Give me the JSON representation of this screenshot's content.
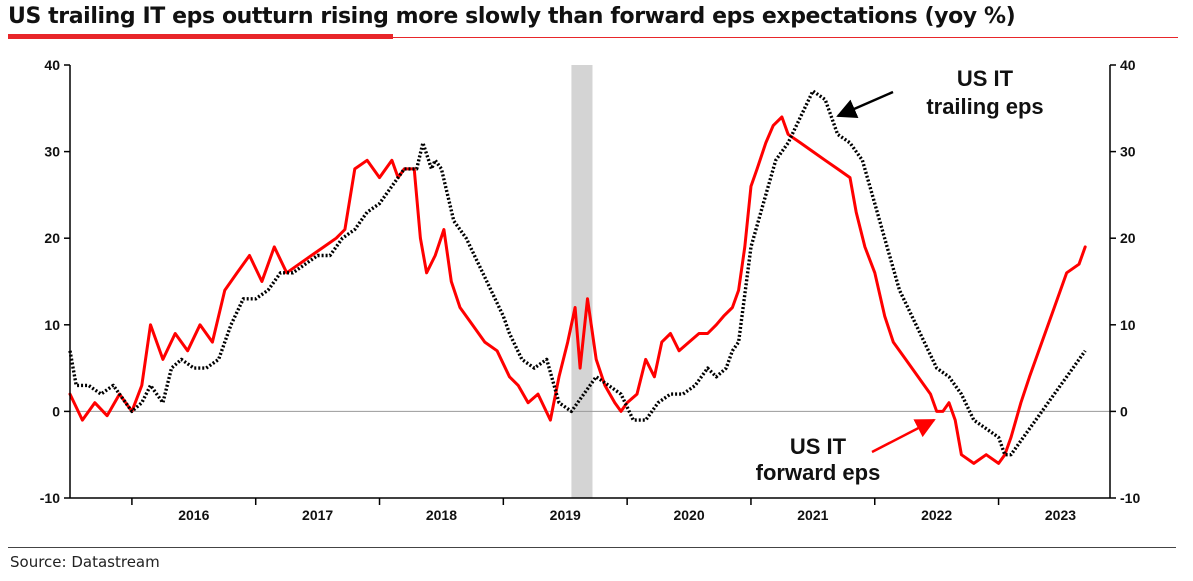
{
  "title": "US trailing IT eps outturn rising more slowly than forward eps expectations (yoy %)",
  "source": "Source: Datastream",
  "chart_data": {
    "type": "line",
    "x_axis": {
      "labels": [
        "2016",
        "2017",
        "2018",
        "2019",
        "2020",
        "2021",
        "2022",
        "2023"
      ],
      "range": [
        2015.5,
        2023.9
      ]
    },
    "y_axis_left": {
      "ticks": [
        "-10",
        "0",
        "10",
        "20",
        "30",
        "40"
      ],
      "range": [
        -10,
        40
      ]
    },
    "y_axis_right": {
      "ticks": [
        "-10",
        "0",
        "10",
        "20",
        "30",
        "40"
      ],
      "range": [
        -10,
        40
      ]
    },
    "shaded_region": [
      2019.55,
      2019.72
    ],
    "zero_line": true,
    "annotations": [
      {
        "text_lines": [
          "US IT",
          "trailing eps"
        ],
        "points_to": "trailing"
      },
      {
        "text_lines": [
          "US IT",
          "forward eps"
        ],
        "points_to": "forward"
      }
    ],
    "series": [
      {
        "key": "forward",
        "color": "#ff0000",
        "style": "solid",
        "points": [
          [
            2015.5,
            2
          ],
          [
            2015.6,
            -1
          ],
          [
            2015.7,
            1
          ],
          [
            2015.8,
            -0.5
          ],
          [
            2015.9,
            2
          ],
          [
            2016.0,
            0
          ],
          [
            2016.08,
            3
          ],
          [
            2016.15,
            10
          ],
          [
            2016.25,
            6
          ],
          [
            2016.35,
            9
          ],
          [
            2016.45,
            7
          ],
          [
            2016.55,
            10
          ],
          [
            2016.65,
            8
          ],
          [
            2016.75,
            14
          ],
          [
            2016.85,
            16
          ],
          [
            2016.95,
            18
          ],
          [
            2017.05,
            15
          ],
          [
            2017.15,
            19
          ],
          [
            2017.25,
            16
          ],
          [
            2017.35,
            17
          ],
          [
            2017.45,
            18
          ],
          [
            2017.55,
            19
          ],
          [
            2017.65,
            20
          ],
          [
            2017.72,
            21
          ],
          [
            2017.8,
            28
          ],
          [
            2017.9,
            29
          ],
          [
            2018.0,
            27
          ],
          [
            2018.1,
            29
          ],
          [
            2018.15,
            27
          ],
          [
            2018.2,
            28
          ],
          [
            2018.28,
            28
          ],
          [
            2018.33,
            20
          ],
          [
            2018.38,
            16
          ],
          [
            2018.45,
            18
          ],
          [
            2018.52,
            21
          ],
          [
            2018.58,
            15
          ],
          [
            2018.65,
            12
          ],
          [
            2018.75,
            10
          ],
          [
            2018.85,
            8
          ],
          [
            2018.95,
            7
          ],
          [
            2019.05,
            4
          ],
          [
            2019.12,
            3
          ],
          [
            2019.2,
            1
          ],
          [
            2019.28,
            2
          ],
          [
            2019.38,
            -1
          ],
          [
            2019.45,
            4
          ],
          [
            2019.52,
            8
          ],
          [
            2019.58,
            12
          ],
          [
            2019.62,
            5
          ],
          [
            2019.68,
            13
          ],
          [
            2019.75,
            6
          ],
          [
            2019.82,
            3
          ],
          [
            2019.9,
            1
          ],
          [
            2019.95,
            0
          ],
          [
            2020.0,
            1
          ],
          [
            2020.08,
            2
          ],
          [
            2020.15,
            6
          ],
          [
            2020.22,
            4
          ],
          [
            2020.28,
            8
          ],
          [
            2020.35,
            9
          ],
          [
            2020.42,
            7
          ],
          [
            2020.5,
            8
          ],
          [
            2020.58,
            9
          ],
          [
            2020.65,
            9
          ],
          [
            2020.72,
            10
          ],
          [
            2020.78,
            11
          ],
          [
            2020.85,
            12
          ],
          [
            2020.9,
            14
          ],
          [
            2020.95,
            19
          ],
          [
            2021.0,
            26
          ],
          [
            2021.05,
            28
          ],
          [
            2021.12,
            31
          ],
          [
            2021.18,
            33
          ],
          [
            2021.25,
            34
          ],
          [
            2021.3,
            32
          ],
          [
            2021.4,
            31
          ],
          [
            2021.5,
            30
          ],
          [
            2021.6,
            29
          ],
          [
            2021.7,
            28
          ],
          [
            2021.8,
            27
          ],
          [
            2021.85,
            23
          ],
          [
            2021.92,
            19
          ],
          [
            2022.0,
            16
          ],
          [
            2022.08,
            11
          ],
          [
            2022.15,
            8
          ],
          [
            2022.25,
            6
          ],
          [
            2022.35,
            4
          ],
          [
            2022.45,
            2
          ],
          [
            2022.5,
            0
          ],
          [
            2022.55,
            0
          ],
          [
            2022.6,
            1
          ],
          [
            2022.65,
            -1
          ],
          [
            2022.7,
            -5
          ],
          [
            2022.8,
            -6
          ],
          [
            2022.9,
            -5
          ],
          [
            2023.0,
            -6
          ],
          [
            2023.05,
            -5
          ],
          [
            2023.1,
            -3
          ],
          [
            2023.18,
            1
          ],
          [
            2023.25,
            4
          ],
          [
            2023.35,
            8
          ],
          [
            2023.45,
            12
          ],
          [
            2023.55,
            16
          ],
          [
            2023.65,
            17
          ],
          [
            2023.7,
            19
          ]
        ]
      },
      {
        "key": "trailing",
        "color": "#000000",
        "style": "dotted",
        "points": [
          [
            2015.5,
            7
          ],
          [
            2015.55,
            3
          ],
          [
            2015.65,
            3
          ],
          [
            2015.75,
            2
          ],
          [
            2015.85,
            3
          ],
          [
            2015.95,
            1
          ],
          [
            2016.0,
            0
          ],
          [
            2016.08,
            1
          ],
          [
            2016.15,
            3
          ],
          [
            2016.25,
            1
          ],
          [
            2016.32,
            5
          ],
          [
            2016.4,
            6
          ],
          [
            2016.5,
            5
          ],
          [
            2016.6,
            5
          ],
          [
            2016.7,
            6
          ],
          [
            2016.8,
            10
          ],
          [
            2016.9,
            13
          ],
          [
            2017.0,
            13
          ],
          [
            2017.1,
            14
          ],
          [
            2017.2,
            16
          ],
          [
            2017.3,
            16
          ],
          [
            2017.4,
            17
          ],
          [
            2017.5,
            18
          ],
          [
            2017.6,
            18
          ],
          [
            2017.7,
            20
          ],
          [
            2017.8,
            21
          ],
          [
            2017.9,
            23
          ],
          [
            2018.0,
            24
          ],
          [
            2018.1,
            26
          ],
          [
            2018.2,
            28
          ],
          [
            2018.3,
            28
          ],
          [
            2018.35,
            31
          ],
          [
            2018.42,
            28
          ],
          [
            2018.45,
            29
          ],
          [
            2018.5,
            28
          ],
          [
            2018.55,
            25
          ],
          [
            2018.6,
            22
          ],
          [
            2018.7,
            20
          ],
          [
            2018.8,
            17
          ],
          [
            2018.9,
            14
          ],
          [
            2019.0,
            11
          ],
          [
            2019.05,
            9
          ],
          [
            2019.15,
            6
          ],
          [
            2019.25,
            5
          ],
          [
            2019.35,
            6
          ],
          [
            2019.45,
            1
          ],
          [
            2019.55,
            0
          ],
          [
            2019.65,
            2
          ],
          [
            2019.75,
            4
          ],
          [
            2019.85,
            3
          ],
          [
            2019.95,
            2
          ],
          [
            2020.05,
            -1
          ],
          [
            2020.15,
            -1
          ],
          [
            2020.25,
            1
          ],
          [
            2020.35,
            2
          ],
          [
            2020.45,
            2
          ],
          [
            2020.55,
            3
          ],
          [
            2020.65,
            5
          ],
          [
            2020.72,
            4
          ],
          [
            2020.8,
            5
          ],
          [
            2020.85,
            7
          ],
          [
            2020.9,
            8
          ],
          [
            2021.0,
            19
          ],
          [
            2021.1,
            24
          ],
          [
            2021.2,
            29
          ],
          [
            2021.3,
            31
          ],
          [
            2021.4,
            34
          ],
          [
            2021.5,
            37
          ],
          [
            2021.6,
            36
          ],
          [
            2021.7,
            32
          ],
          [
            2021.8,
            31
          ],
          [
            2021.9,
            29
          ],
          [
            2022.0,
            24
          ],
          [
            2022.1,
            19
          ],
          [
            2022.2,
            14
          ],
          [
            2022.3,
            11
          ],
          [
            2022.4,
            8
          ],
          [
            2022.5,
            5
          ],
          [
            2022.6,
            4
          ],
          [
            2022.7,
            2
          ],
          [
            2022.8,
            -1
          ],
          [
            2022.9,
            -2
          ],
          [
            2023.0,
            -3
          ],
          [
            2023.05,
            -5
          ],
          [
            2023.1,
            -5
          ],
          [
            2023.2,
            -3
          ],
          [
            2023.3,
            -1
          ],
          [
            2023.4,
            1
          ],
          [
            2023.5,
            3
          ],
          [
            2023.6,
            5
          ],
          [
            2023.7,
            7
          ]
        ]
      }
    ]
  }
}
